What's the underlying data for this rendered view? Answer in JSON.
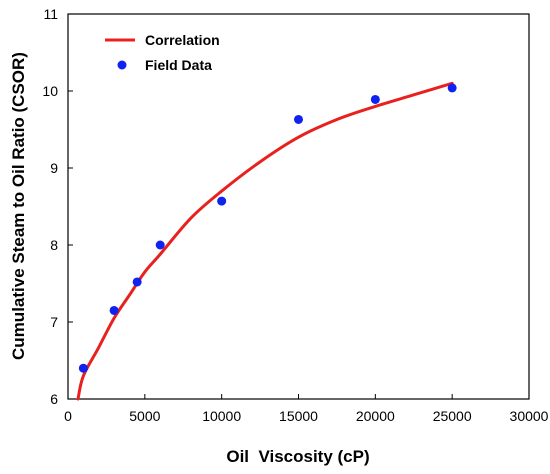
{
  "chart_data": {
    "type": "line+scatter",
    "xlabel": "Oil  Viscosity (cP)",
    "ylabel": "Cumulative Steam to Oil Ratio (CSOR)",
    "xlim": [
      0,
      30000
    ],
    "ylim": [
      6,
      11
    ],
    "xticks": [
      0,
      5000,
      10000,
      15000,
      20000,
      25000,
      30000
    ],
    "yticks": [
      6,
      7,
      8,
      9,
      10,
      11
    ],
    "grid": false,
    "legend_position": "top-left",
    "series": [
      {
        "name": "Correlation",
        "kind": "line",
        "color": "#e8211f",
        "points": [
          [
            650,
            6.0
          ],
          [
            1000,
            6.3
          ],
          [
            2000,
            6.67
          ],
          [
            3000,
            7.05
          ],
          [
            4000,
            7.35
          ],
          [
            5000,
            7.65
          ],
          [
            6000,
            7.88
          ],
          [
            8000,
            8.35
          ],
          [
            10000,
            8.7
          ],
          [
            12500,
            9.08
          ],
          [
            15000,
            9.4
          ],
          [
            17500,
            9.63
          ],
          [
            20000,
            9.8
          ],
          [
            22500,
            9.95
          ],
          [
            25000,
            10.1
          ]
        ]
      },
      {
        "name": "Field Data",
        "kind": "scatter",
        "color": "#1022f0",
        "points": [
          [
            1000,
            6.4
          ],
          [
            3000,
            7.15
          ],
          [
            4500,
            7.52
          ],
          [
            6000,
            8.0
          ],
          [
            10000,
            8.57
          ],
          [
            15000,
            9.63
          ],
          [
            20000,
            9.89
          ],
          [
            25000,
            10.04
          ]
        ]
      }
    ]
  }
}
